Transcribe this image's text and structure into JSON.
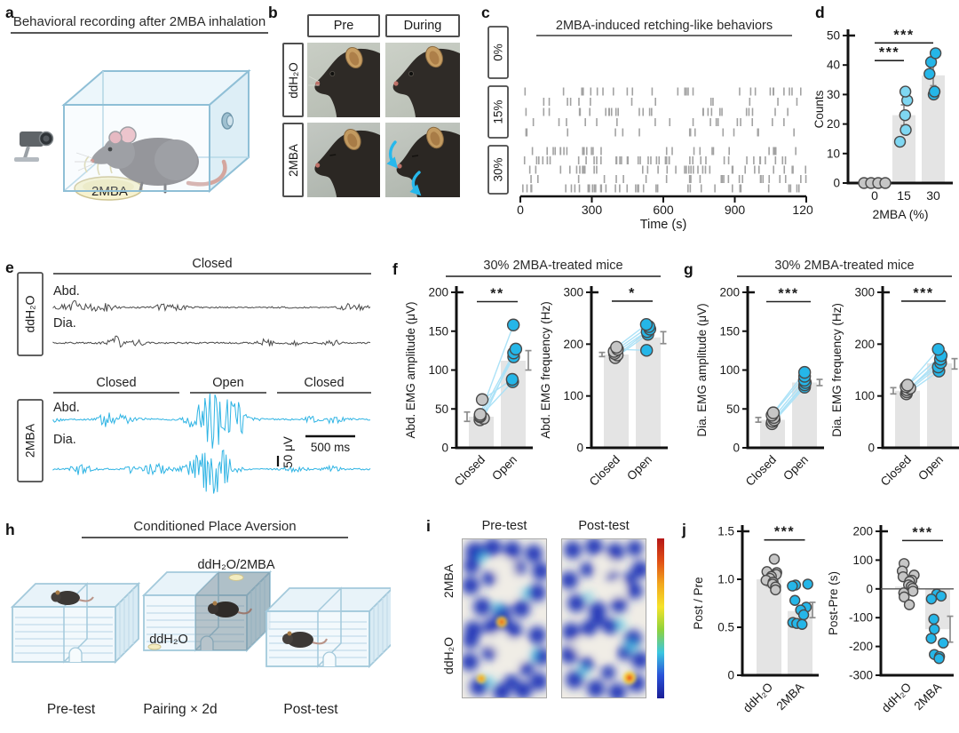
{
  "figure": {
    "panels": {
      "a": {
        "label": "a",
        "title": "Behavioral recording after 2MBA inhalation",
        "dish_label": "2MBA"
      },
      "b": {
        "label": "b",
        "col_headers": [
          "Pre",
          "During"
        ],
        "row_headers": [
          "ddH₂O",
          "2MBA"
        ]
      },
      "c": {
        "label": "c"
      },
      "d": {
        "label": "d"
      },
      "e": {
        "label": "e"
      },
      "f": {
        "label": "f",
        "title": "30% 2MBA-treated mice"
      },
      "g": {
        "label": "g",
        "title": "30% 2MBA-treated mice"
      },
      "h": {
        "label": "h",
        "title": "Conditioned Place Aversion",
        "chamber_top_label": "ddH₂O/2MBA",
        "chamber_bottom_label": "ddH₂O",
        "stage_labels": [
          "Pre-test",
          "Pairing × 2d",
          "Post-test"
        ]
      },
      "i": {
        "label": "i",
        "col_headers": [
          "Pre-test",
          "Post-test"
        ],
        "row_headers": [
          "2MBA",
          "ddH₂O"
        ]
      },
      "j": {
        "label": "j"
      }
    }
  },
  "colors": {
    "accent_cyan": "#25b6e8",
    "light_cyan": "#7fd7f2",
    "pair_line": "#ace2f7",
    "gray_point": "#c6c6c6",
    "bar_fill": "#e4e4e4",
    "trace_dark": "#4a4a4a",
    "raster_tick": "#a2a2a2",
    "cage_blue": "#a3c9db"
  },
  "chart_data": [
    {
      "id": "c",
      "type": "raster",
      "title": "2MBA-induced retching-like behaviors",
      "xlabel": "Time (s)",
      "xlim": [
        0,
        1200
      ],
      "xticks": [
        0,
        300,
        600,
        900,
        1200
      ],
      "tick_color": "#a2a2a2",
      "groups": [
        {
          "label": "0%",
          "row_event_counts": [
            0,
            0,
            0,
            0,
            0
          ]
        },
        {
          "label": "15%",
          "row_event_counts": [
            26,
            13,
            27,
            17,
            14
          ]
        },
        {
          "label": "30%",
          "row_event_counts": [
            28,
            42,
            36,
            25,
            38
          ]
        }
      ]
    },
    {
      "id": "d",
      "type": "bar-scatter",
      "ylabel": "Counts",
      "xlabel": "2MBA (%)",
      "ylim": [
        0,
        50
      ],
      "yticks": [
        0,
        10,
        20,
        30,
        40,
        50
      ],
      "categories": [
        "0",
        "15",
        "30"
      ],
      "bars": [
        0,
        23,
        36.5
      ],
      "err": [
        null,
        [
          19.5,
          26.5
        ],
        [
          33,
          40
        ]
      ],
      "err_dx": [
        0,
        0,
        0
      ],
      "points": [
        [
          0,
          0,
          0,
          0
        ],
        [
          14,
          18,
          23,
          28,
          31
        ],
        [
          30,
          31,
          37,
          41,
          44
        ]
      ],
      "point_colors": [
        "#c6c6c6",
        "#7fd7f2",
        "#25b6e8"
      ],
      "sig": [
        {
          "a": 0,
          "b": 1,
          "label": "***",
          "y": 41.5
        },
        {
          "a": 0,
          "b": 2,
          "label": "***",
          "y": 47.5
        }
      ]
    },
    {
      "id": "f_amp",
      "type": "paired-bar-scatter",
      "ylabel": "Abd. EMG amplitude (μV)",
      "ylim": [
        0,
        200
      ],
      "yticks": [
        0,
        50,
        100,
        150,
        200
      ],
      "categories": [
        "Closed",
        "Open"
      ],
      "bars": [
        40,
        112
      ],
      "err": [
        [
          34,
          46
        ],
        [
          100,
          125
        ]
      ],
      "err_dx": [
        -16,
        17
      ],
      "points": [
        [
          36,
          38,
          40,
          41,
          43,
          62
        ],
        [
          117,
          122,
          85,
          127,
          158,
          88
        ]
      ],
      "point_colors": [
        "#c6c6c6",
        "#25b6e8"
      ],
      "sig": [
        {
          "a": 0,
          "b": 1,
          "label": "**",
          "y": 188,
          "span": 46
        }
      ]
    },
    {
      "id": "f_freq",
      "type": "paired-bar-scatter",
      "ylabel": "Abd. EMG frequency (Hz)",
      "ylim": [
        0,
        300
      ],
      "yticks": [
        0,
        100,
        200,
        300
      ],
      "categories": [
        "Closed",
        "Open"
      ],
      "bars": [
        180,
        213
      ],
      "err": [
        [
          176,
          184
        ],
        [
          201,
          224
        ]
      ],
      "err_dx": [
        -16,
        17
      ],
      "points": [
        [
          174,
          179,
          182,
          186,
          190,
          194
        ],
        [
          219,
          224,
          229,
          234,
          188,
          238
        ]
      ],
      "point_colors": [
        "#c6c6c6",
        "#25b6e8"
      ],
      "sig": [
        {
          "a": 0,
          "b": 1,
          "label": "*",
          "y": 283,
          "span": 46
        }
      ]
    },
    {
      "id": "g_amp",
      "type": "paired-bar-scatter",
      "ylabel": "Dia. EMG amplitude (μV)",
      "ylim": [
        0,
        200
      ],
      "yticks": [
        0,
        50,
        100,
        150,
        200
      ],
      "categories": [
        "Closed",
        "Open"
      ],
      "bars": [
        36,
        84
      ],
      "err": [
        [
          33,
          39
        ],
        [
          80,
          88
        ]
      ],
      "err_dx": [
        -16,
        17
      ],
      "points": [
        [
          31,
          34,
          36,
          39,
          42,
          45
        ],
        [
          78,
          81,
          84,
          87,
          92,
          97
        ]
      ],
      "point_colors": [
        "#c6c6c6",
        "#25b6e8"
      ],
      "sig": [
        {
          "a": 0,
          "b": 1,
          "label": "***",
          "y": 188,
          "span": 50
        }
      ]
    },
    {
      "id": "g_freq",
      "type": "paired-bar-scatter",
      "ylabel": "Dia. EMG frequency (Hz)",
      "ylim": [
        0,
        300
      ],
      "yticks": [
        0,
        100,
        200,
        300
      ],
      "categories": [
        "Closed",
        "Open"
      ],
      "bars": [
        110,
        163
      ],
      "err": [
        [
          104,
          116
        ],
        [
          152,
          172
        ]
      ],
      "err_dx": [
        -16,
        17
      ],
      "points": [
        [
          104,
          108,
          112,
          115,
          118,
          121
        ],
        [
          148,
          156,
          164,
          171,
          178,
          190
        ]
      ],
      "point_colors": [
        "#c6c6c6",
        "#25b6e8"
      ],
      "sig": [
        {
          "a": 0,
          "b": 1,
          "label": "***",
          "y": 283,
          "span": 50
        }
      ]
    },
    {
      "id": "j_ratio",
      "type": "bar-scatter",
      "ylabel": "Post / Pre",
      "ylim": [
        0,
        1.5
      ],
      "yticks": [
        0,
        0.5,
        1,
        1.5
      ],
      "ytick_labels": [
        "0",
        "0.5",
        "1.0",
        "1.5"
      ],
      "categories": [
        "ddH₂O",
        "2MBA"
      ],
      "bars": [
        1.0,
        0.67
      ],
      "err": [
        [
          0.93,
          1.07
        ],
        [
          0.6,
          0.76
        ]
      ],
      "err_dx": [
        0,
        14
      ],
      "points": [
        [
          1.21,
          1.08,
          1.07,
          1.05,
          1.03,
          1.01,
          0.99,
          0.97,
          0.95,
          0.92,
          0.89
        ],
        [
          0.95,
          0.94,
          0.93,
          0.78,
          0.71,
          0.68,
          0.63,
          0.55,
          0.54,
          0.53
        ]
      ],
      "point_colors": [
        "#c6c6c6",
        "#25b6e8"
      ],
      "sig": [
        {
          "a": 0,
          "b": 1,
          "label": "***",
          "y": 1.41,
          "span": 46
        }
      ],
      "xtick_rotate": true
    },
    {
      "id": "j_diff",
      "type": "bar-scatter",
      "ylabel": "Post-Pre (s)",
      "ylim": [
        -300,
        200
      ],
      "yticks": [
        -300,
        -200,
        -100,
        0,
        100,
        200
      ],
      "categories": [
        "ddH₂O",
        "2MBA"
      ],
      "bars": [
        8,
        -140
      ],
      "err": [
        [
          -10,
          26
        ],
        [
          -185,
          -95
        ]
      ],
      "err_dx": [
        0,
        14
      ],
      "points": [
        [
          88,
          62,
          48,
          42,
          30,
          26,
          14,
          8,
          2,
          -8,
          -14,
          -28,
          -55
        ],
        [
          -18,
          -25,
          -35,
          -105,
          -140,
          -172,
          -188,
          -228,
          -235,
          -242
        ]
      ],
      "point_colors": [
        "#c6c6c6",
        "#25b6e8"
      ],
      "sig": [
        {
          "a": 0,
          "b": 1,
          "label": "***",
          "y": 168,
          "span": 46
        }
      ],
      "xtick_rotate": true,
      "zero_line": true
    },
    {
      "id": "e_traces",
      "type": "emg-traces",
      "scale_v": "50 μV",
      "scale_h": "500 ms",
      "groups": [
        {
          "label": "ddH₂O",
          "color": "#4a4a4a",
          "headers": [
            {
              "text": "Closed",
              "x1": 60,
              "x2": 418
            }
          ],
          "traces": [
            {
              "label": "Abd.",
              "segments": [
                [
                  0,
                  1,
                  3.5,
                  9
                ]
              ]
            },
            {
              "label": "Dia.",
              "segments": [
                [
                  0,
                  1,
                  4.5,
                  7
                ]
              ]
            }
          ]
        },
        {
          "label": "2MBA",
          "color": "#2fb4e4",
          "headers": [
            {
              "text": "Closed",
              "x1": 60,
              "x2": 202
            },
            {
              "text": "Open",
              "x1": 214,
              "x2": 300
            },
            {
              "text": "Closed",
              "x1": 312,
              "x2": 418
            }
          ],
          "traces": [
            {
              "label": "Abd.",
              "segments": [
                [
                  0,
                  0.4,
                  4,
                  6
                ],
                [
                  0.43,
                  0.67,
                  26,
                  3
                ],
                [
                  0.71,
                  1,
                  3.5,
                  3
                ]
              ]
            },
            {
              "label": "Dia.",
              "segments": [
                [
                  0,
                  0.4,
                  4,
                  5
                ],
                [
                  0.43,
                  0.67,
                  17,
                  3
                ],
                [
                  0.71,
                  1,
                  3.5,
                  2
                ]
              ]
            }
          ]
        }
      ]
    }
  ]
}
